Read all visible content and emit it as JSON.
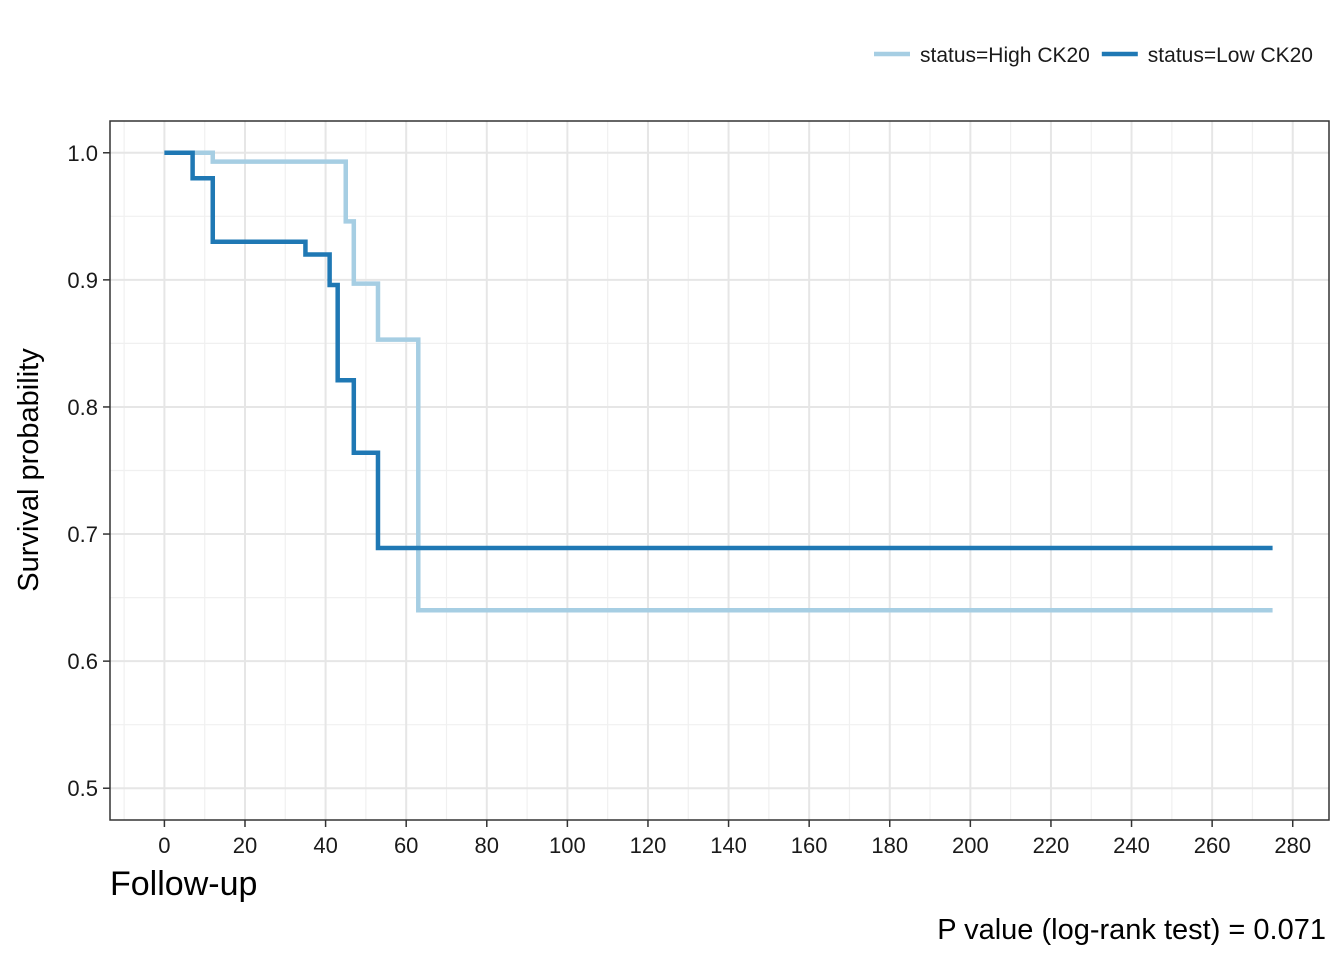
{
  "chart_data": {
    "type": "line",
    "step": true,
    "xlabel": "Follow-up",
    "ylabel": "Survival probability",
    "annotation": "P value (log-rank test) = 0.071",
    "xlim": [
      -13.5,
      289
    ],
    "ylim": [
      0.475,
      1.025
    ],
    "x_ticks": [
      0,
      20,
      40,
      60,
      80,
      100,
      120,
      140,
      160,
      180,
      200,
      220,
      240,
      260,
      280
    ],
    "x_tick_labels": [
      "0",
      "20",
      "40",
      "60",
      "80",
      "100",
      "120",
      "140",
      "160",
      "180",
      "200",
      "220",
      "240",
      "260",
      "280"
    ],
    "y_ticks": [
      0.5,
      0.6,
      0.7,
      0.8,
      0.9,
      1.0
    ],
    "y_tick_labels": [
      "0.5",
      "0.6",
      "0.7",
      "0.8",
      "0.9",
      "1.0"
    ],
    "grid": true,
    "legend_position": "top-right",
    "series": [
      {
        "name": "status=High CK20",
        "color": "#a6cee3",
        "points": [
          [
            0,
            1.0
          ],
          [
            12,
            0.993
          ],
          [
            45,
            0.946
          ],
          [
            47,
            0.897
          ],
          [
            53,
            0.853
          ],
          [
            63,
            0.64
          ],
          [
            275,
            0.64
          ]
        ]
      },
      {
        "name": "status=Low CK20",
        "color": "#1f78b4",
        "points": [
          [
            0,
            1.0
          ],
          [
            7,
            0.98
          ],
          [
            12,
            0.93
          ],
          [
            35,
            0.92
          ],
          [
            41,
            0.896
          ],
          [
            43,
            0.821
          ],
          [
            47,
            0.764
          ],
          [
            53,
            0.689
          ],
          [
            275,
            0.689
          ]
        ]
      }
    ]
  }
}
